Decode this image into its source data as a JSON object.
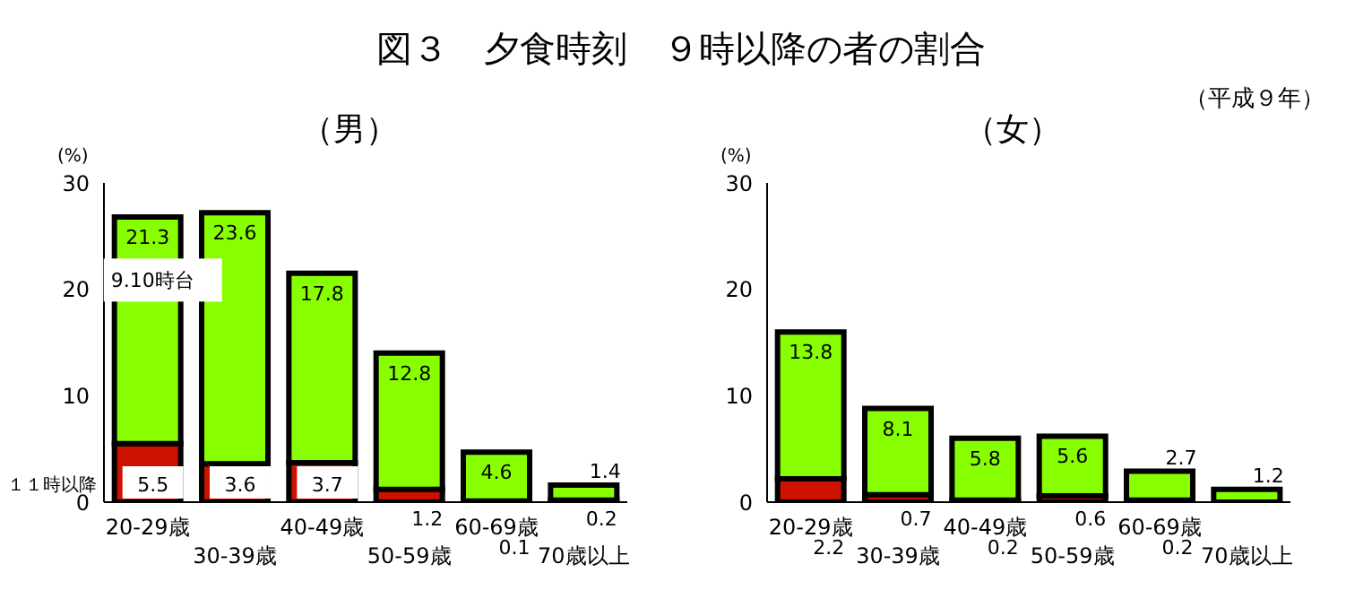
{
  "chart_data": [
    {
      "type": "bar",
      "title": "（男）",
      "ylabel": "(%)",
      "annotations": [
        "図３　夕食時刻　９時以降の者の割合",
        "（平成９年）"
      ],
      "categories": [
        "20-29歳",
        "30-39歳",
        "40-49歳",
        "50-59歳",
        "60-69歳",
        "70歳以上"
      ],
      "stacked": true,
      "data_labels": true,
      "legend": false,
      "grid": false,
      "ylim": [
        0,
        30
      ],
      "yticks": [
        0,
        10,
        20,
        30
      ],
      "series": [
        {
          "name": "１１時以降",
          "color": "#cc1100",
          "values": [
            5.5,
            3.6,
            3.7,
            1.2,
            0.1,
            0.2
          ]
        },
        {
          "name": "9.10時台",
          "color": "#88ff00",
          "values": [
            21.3,
            23.6,
            17.8,
            12.8,
            4.6,
            1.4
          ]
        }
      ]
    },
    {
      "type": "bar",
      "title": "（女）",
      "ylabel": "(%)",
      "categories": [
        "20-29歳",
        "30-39歳",
        "40-49歳",
        "50-59歳",
        "60-69歳",
        "70歳以上"
      ],
      "stacked": true,
      "data_labels": true,
      "legend": false,
      "grid": false,
      "ylim": [
        0,
        30
      ],
      "yticks": [
        0,
        10,
        20,
        30
      ],
      "series": [
        {
          "color": "#cc1100",
          "values": [
            2.2,
            0.7,
            0.2,
            0.6,
            0.2,
            null
          ]
        },
        {
          "color": "#88ff00",
          "values": [
            13.8,
            8.1,
            5.8,
            5.6,
            2.7,
            1.2
          ]
        }
      ]
    }
  ]
}
